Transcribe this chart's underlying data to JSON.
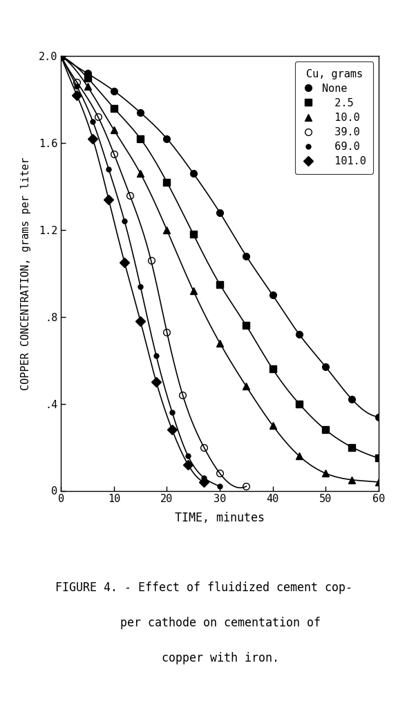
{
  "title": "",
  "xlabel": "TIME, minutes",
  "ylabel": "COPPER CONCENTRATION, grams per liter",
  "xlim": [
    0,
    60
  ],
  "ylim": [
    0,
    2.0
  ],
  "yticks": [
    0,
    0.4,
    0.8,
    1.2,
    1.6,
    2.0
  ],
  "ytick_labels": [
    "0",
    ".4",
    ".8",
    "1.2",
    "1.6",
    "2.0"
  ],
  "xticks": [
    0,
    10,
    20,
    30,
    40,
    50,
    60
  ],
  "legend_title": "Cu, grams",
  "series": [
    {
      "label": "None",
      "marker": "o",
      "fillstyle": "full",
      "color": "black",
      "x": [
        0,
        5,
        10,
        15,
        20,
        25,
        30,
        35,
        40,
        45,
        50,
        55,
        60
      ],
      "y": [
        2.0,
        1.92,
        1.84,
        1.74,
        1.62,
        1.46,
        1.28,
        1.08,
        0.9,
        0.72,
        0.57,
        0.42,
        0.34
      ]
    },
    {
      "label": "2.5",
      "marker": "s",
      "fillstyle": "full",
      "color": "black",
      "x": [
        0,
        5,
        10,
        15,
        20,
        25,
        30,
        35,
        40,
        45,
        50,
        55,
        60
      ],
      "y": [
        2.0,
        1.9,
        1.76,
        1.62,
        1.42,
        1.18,
        0.95,
        0.76,
        0.56,
        0.4,
        0.28,
        0.2,
        0.15
      ]
    },
    {
      "label": "10.0",
      "marker": "^",
      "fillstyle": "full",
      "color": "black",
      "x": [
        0,
        5,
        10,
        15,
        20,
        25,
        30,
        35,
        40,
        45,
        50,
        55,
        60
      ],
      "y": [
        2.0,
        1.86,
        1.66,
        1.46,
        1.2,
        0.92,
        0.68,
        0.48,
        0.3,
        0.16,
        0.08,
        0.05,
        0.04
      ]
    },
    {
      "label": "39.0",
      "marker": "o",
      "fillstyle": "none",
      "color": "black",
      "x": [
        0,
        3,
        7,
        10,
        13,
        17,
        20,
        23,
        27,
        30,
        35
      ],
      "y": [
        2.0,
        1.88,
        1.72,
        1.55,
        1.36,
        1.06,
        0.73,
        0.44,
        0.2,
        0.08,
        0.02
      ]
    },
    {
      "label": "69.0",
      "marker": "o",
      "fillstyle": "full",
      "color": "black",
      "markersize": 5,
      "small": true,
      "x": [
        0,
        3,
        6,
        9,
        12,
        15,
        18,
        21,
        24,
        27,
        30
      ],
      "y": [
        2.0,
        1.86,
        1.7,
        1.48,
        1.24,
        0.94,
        0.62,
        0.36,
        0.16,
        0.06,
        0.02
      ]
    },
    {
      "label": "101.0",
      "marker": "D",
      "fillstyle": "full",
      "color": "black",
      "x": [
        0,
        3,
        6,
        9,
        12,
        15,
        18,
        21,
        24,
        27
      ],
      "y": [
        2.0,
        1.82,
        1.62,
        1.34,
        1.05,
        0.78,
        0.5,
        0.28,
        0.12,
        0.04
      ]
    }
  ],
  "figure_caption": "FIGURE 4. - Effect of fluidized cement cop-\n        per cathode on cementation of\n        copper with iron.",
  "background_color": "#ffffff",
  "line_color": "black",
  "text_color": "black"
}
